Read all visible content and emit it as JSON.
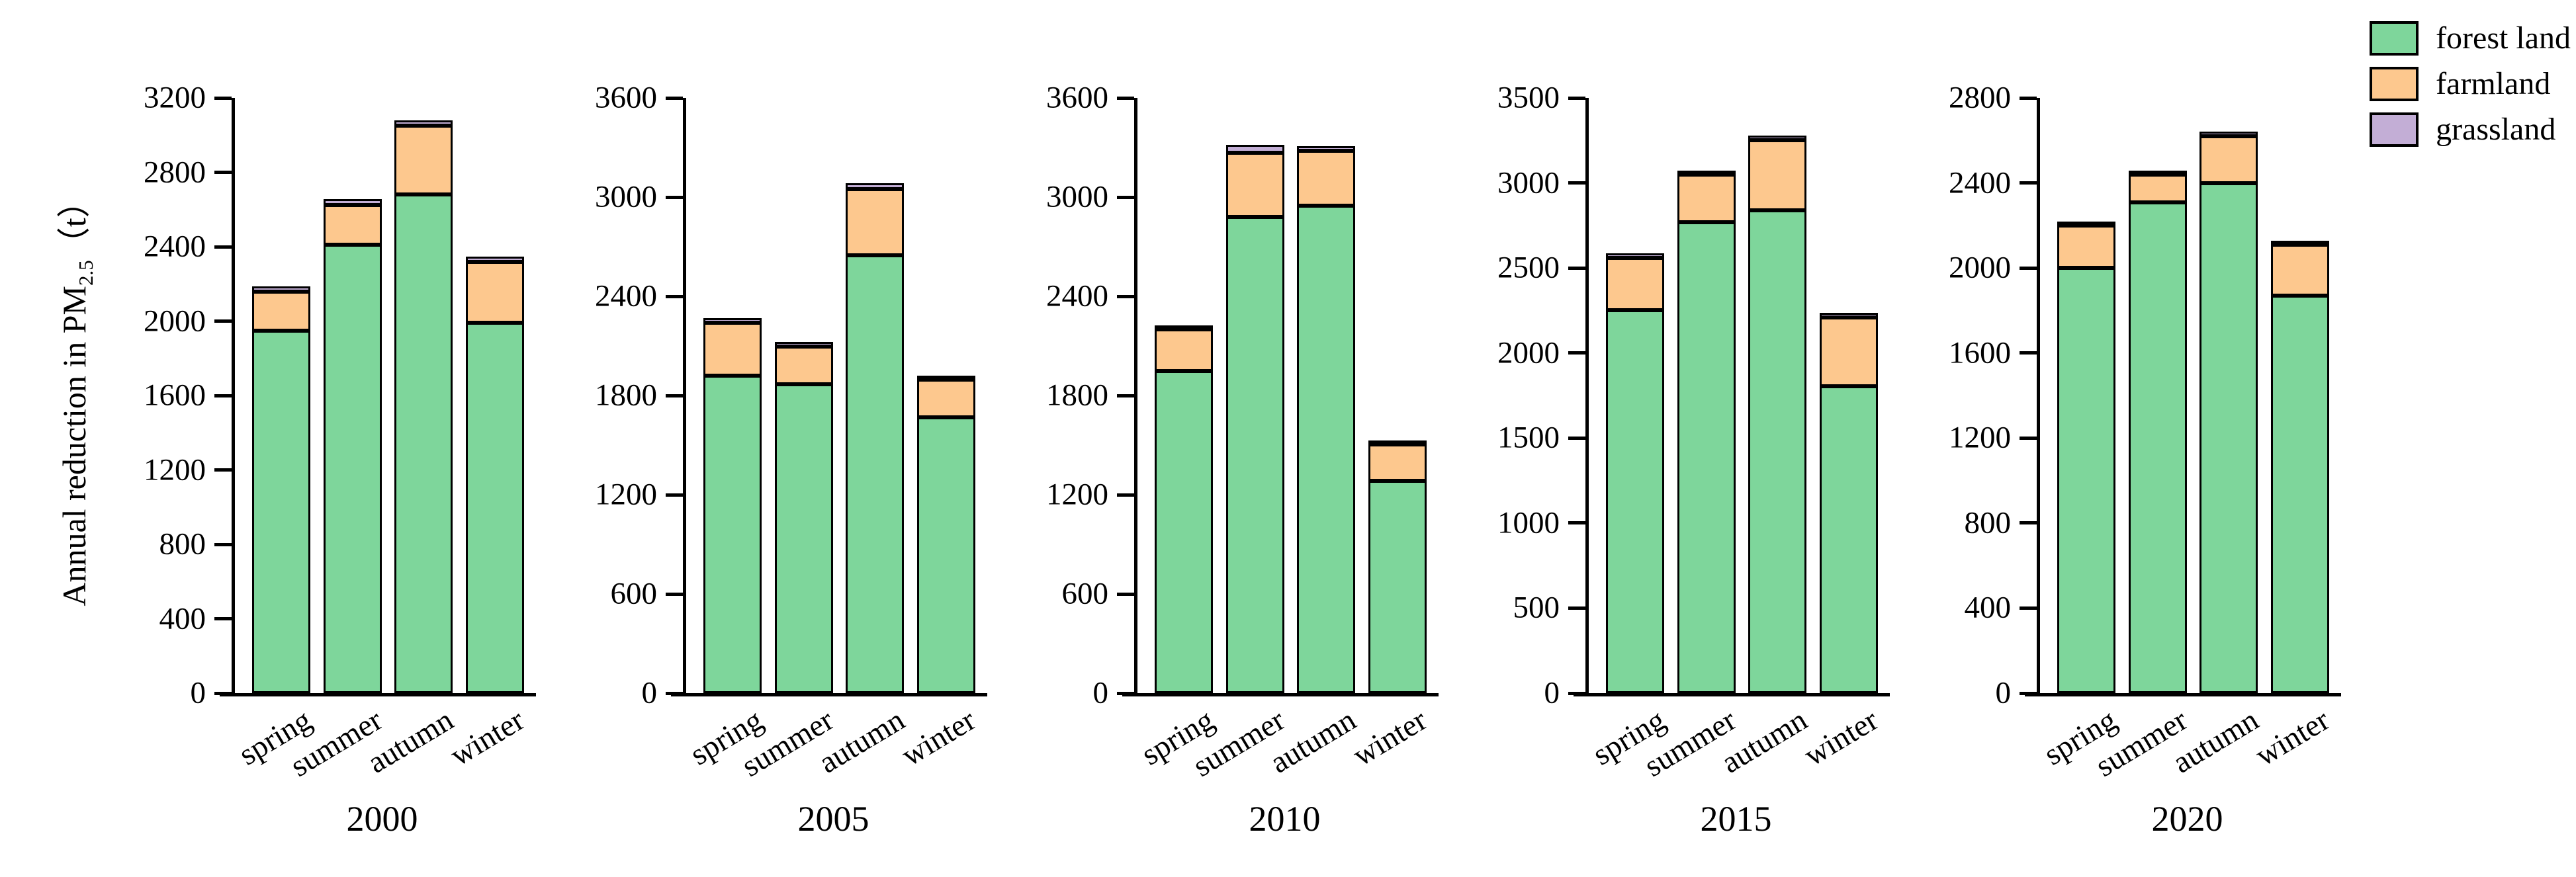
{
  "figure": {
    "ylabel_prefix": "Annual reduction in PM",
    "ylabel_sub": "2.5",
    "ylabel_suffix": "（t）"
  },
  "colors": {
    "forest_land": "#7ed69b",
    "farmland": "#fdc88e",
    "grassland": "#c3aed6",
    "axis": "#000000"
  },
  "legend": {
    "position": "top-right",
    "items": [
      {
        "label": "forest land",
        "color": "#7ed69b"
      },
      {
        "label": "farmland",
        "color": "#fdc88e"
      },
      {
        "label": "grassland",
        "color": "#c3aed6"
      }
    ]
  },
  "chart_data": [
    {
      "type": "bar",
      "stacked": true,
      "title": "2000",
      "categories": [
        "spring",
        "summer",
        "autumn",
        "winter"
      ],
      "series": [
        {
          "name": "forest land",
          "values": [
            1950,
            2410,
            2680,
            1990
          ]
        },
        {
          "name": "farmland",
          "values": [
            210,
            215,
            370,
            330
          ]
        },
        {
          "name": "grassland",
          "values": [
            25,
            30,
            30,
            25
          ]
        }
      ],
      "ylim": [
        0,
        3200
      ],
      "yticks": [
        0,
        400,
        800,
        1200,
        1600,
        2000,
        2400,
        2800,
        3200
      ],
      "grid": false
    },
    {
      "type": "bar",
      "stacked": true,
      "title": "2005",
      "categories": [
        "spring",
        "summer",
        "autumn",
        "winter"
      ],
      "series": [
        {
          "name": "forest land",
          "values": [
            1920,
            1870,
            2650,
            1670
          ]
        },
        {
          "name": "farmland",
          "values": [
            320,
            225,
            400,
            225
          ]
        },
        {
          "name": "grassland",
          "values": [
            30,
            30,
            35,
            20
          ]
        }
      ],
      "ylim": [
        0,
        3600
      ],
      "yticks": [
        0,
        600,
        1200,
        1800,
        2400,
        3000,
        3600
      ],
      "grid": false
    },
    {
      "type": "bar",
      "stacked": true,
      "title": "2010",
      "categories": [
        "spring",
        "summer",
        "autumn",
        "winter"
      ],
      "series": [
        {
          "name": "forest land",
          "values": [
            1950,
            2880,
            2950,
            1285
          ]
        },
        {
          "name": "farmland",
          "values": [
            250,
            390,
            330,
            220
          ]
        },
        {
          "name": "grassland",
          "values": [
            20,
            45,
            30,
            20
          ]
        }
      ],
      "ylim": [
        0,
        3600
      ],
      "yticks": [
        0,
        600,
        1200,
        1800,
        2400,
        3000,
        3600
      ],
      "grid": false
    },
    {
      "type": "bar",
      "stacked": true,
      "title": "2015",
      "categories": [
        "spring",
        "summer",
        "autumn",
        "winter"
      ],
      "series": [
        {
          "name": "forest land",
          "values": [
            2250,
            2770,
            2840,
            1805
          ]
        },
        {
          "name": "farmland",
          "values": [
            310,
            280,
            410,
            405
          ]
        },
        {
          "name": "grassland",
          "values": [
            25,
            10,
            30,
            25
          ]
        }
      ],
      "ylim": [
        0,
        3500
      ],
      "yticks": [
        0,
        500,
        1000,
        1500,
        2000,
        2500,
        3000,
        3500
      ],
      "grid": false
    },
    {
      "type": "bar",
      "stacked": true,
      "title": "2020",
      "categories": [
        "spring",
        "summer",
        "autumn",
        "winter"
      ],
      "series": [
        {
          "name": "forest land",
          "values": [
            2000,
            2310,
            2400,
            1870
          ]
        },
        {
          "name": "farmland",
          "values": [
            200,
            130,
            220,
            240
          ]
        },
        {
          "name": "grassland",
          "values": [
            15,
            15,
            20,
            15
          ]
        }
      ],
      "ylim": [
        0,
        2800
      ],
      "yticks": [
        0,
        400,
        800,
        1200,
        1600,
        2000,
        2400,
        2800
      ],
      "grid": false
    }
  ]
}
